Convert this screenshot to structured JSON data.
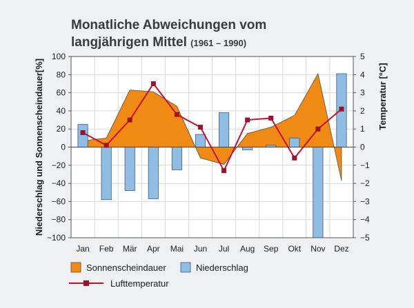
{
  "chart_data": {
    "type": "bar",
    "title": "Monatliche Abweichungen vom",
    "title_line2": "langjährigen Mittel",
    "subtitle": "(1961 – 1990)",
    "ylabel_left": "Niederschlag und Sonnenscheindauer[%]",
    "ylabel_right": "Temperatur [°C]",
    "categories": [
      "Jan",
      "Feb",
      "Mär",
      "Apr",
      "Mai",
      "Jun",
      "Jul",
      "Aug",
      "Sep",
      "Okt",
      "Nov",
      "Dez"
    ],
    "ylim_left": [
      -100,
      100
    ],
    "yticks_left": [
      100,
      80,
      60,
      40,
      20,
      0,
      -20,
      -40,
      -60,
      -80,
      -100
    ],
    "ylim_right": [
      -5,
      5
    ],
    "yticks_right": [
      5,
      4,
      3,
      2,
      1,
      0,
      -1,
      -2,
      -3,
      -4,
      -5
    ],
    "grid": true,
    "legend_position": "bottom",
    "series": [
      {
        "name": "Sonnenscheindauer",
        "type": "area",
        "axis": "left",
        "color": "#ef8a14",
        "values": [
          7,
          10,
          63,
          61,
          45,
          -12,
          -19,
          15,
          22,
          35,
          81,
          -37
        ]
      },
      {
        "name": "Niederschlag",
        "type": "bar",
        "axis": "left",
        "color": "#8fbde3",
        "values": [
          25,
          -58,
          -48,
          -57,
          -25,
          14,
          38,
          -3,
          2,
          10,
          -100,
          81
        ]
      },
      {
        "name": "Lufttemperatur",
        "type": "line",
        "axis": "right",
        "color": "#c8102e",
        "values": [
          0.8,
          0.1,
          1.5,
          3.5,
          1.8,
          1.1,
          -1.3,
          1.5,
          1.6,
          -0.6,
          1.0,
          2.1
        ]
      }
    ]
  }
}
